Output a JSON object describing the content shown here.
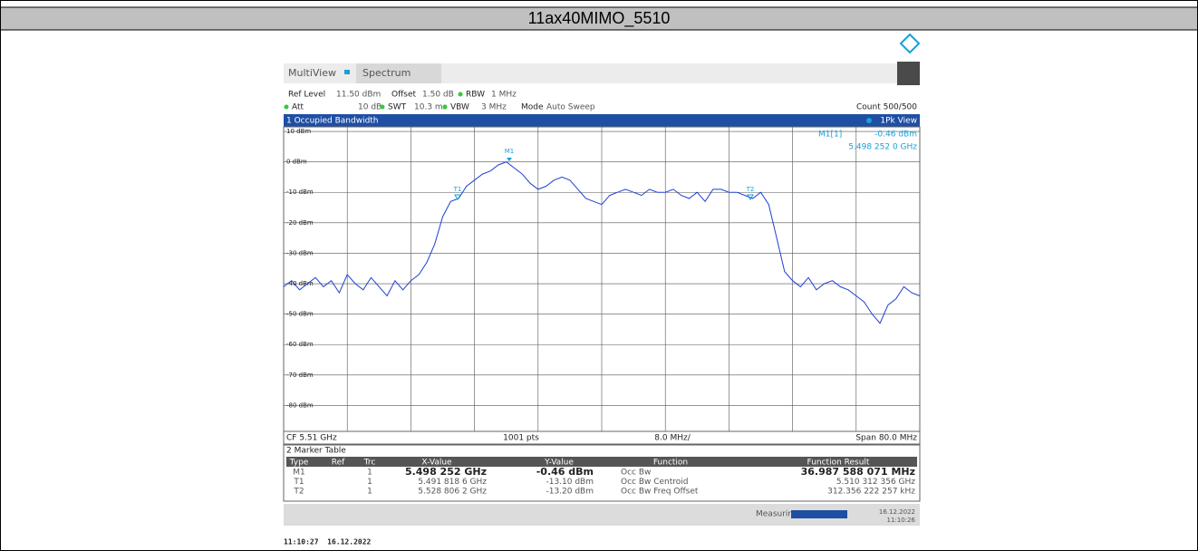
{
  "title": "11ax40MIMO_5510",
  "tabs": [
    "MultiView",
    "Spectrum"
  ],
  "settings": {
    "ref_level_label": "Ref Level",
    "ref_level": "11.50 dBm",
    "offset_label": "Offset",
    "offset": "1.50 dB",
    "rbw_label": "RBW",
    "rbw": "1 MHz",
    "att_label": "Att",
    "att": "10 dB",
    "swt_label": "SWT",
    "swt": "10.3 ms",
    "vbw_label": "VBW",
    "vbw": "3 MHz",
    "mode_label": "Mode",
    "mode": "Auto Sweep",
    "count": "Count 500/500"
  },
  "window": {
    "title": "1 Occupied Bandwidth",
    "view": "1Pk View"
  },
  "readout": {
    "marker": "M1[1]",
    "level": "-0.46 dBm",
    "freq": "5.498 252 0 GHz"
  },
  "plot": {
    "ylim": [
      -88.5,
      11.5
    ],
    "yticks": [
      {
        "value": 10,
        "label": "10 dBm"
      },
      {
        "value": 0,
        "label": "0 dBm"
      },
      {
        "value": -10,
        "label": "-10 dBm"
      },
      {
        "value": -20,
        "label": "-20 dBm"
      },
      {
        "value": -30,
        "label": "-30 dBm"
      },
      {
        "value": -40,
        "label": "-40 dBm"
      },
      {
        "value": -50,
        "label": "-50 dBm"
      },
      {
        "value": -60,
        "label": "-60 dBm"
      },
      {
        "value": -70,
        "label": "-70 dBm"
      },
      {
        "value": -80,
        "label": "-80 dBm"
      }
    ],
    "trace": [
      -41,
      -39,
      -42,
      -40,
      -38,
      -41,
      -39,
      -43,
      -37,
      -40,
      -42,
      -38,
      -41,
      -44,
      -39,
      -42,
      -39,
      -37,
      -33,
      -27,
      -18,
      -13,
      -12,
      -8,
      -6,
      -4,
      -3,
      -1,
      0,
      -2,
      -4,
      -7,
      -9,
      -8,
      -6,
      -5,
      -6,
      -9,
      -12,
      -13,
      -14,
      -11,
      -10,
      -9,
      -10,
      -11,
      -9,
      -10,
      -10,
      -9,
      -11,
      -12,
      -10,
      -13,
      -9,
      -9,
      -10,
      -10,
      -11,
      -12,
      -10,
      -14,
      -25,
      -36,
      -39,
      -41,
      -38,
      -42,
      -40,
      -39,
      -41,
      -42,
      -44,
      -46,
      -50,
      -53,
      -47,
      -45,
      -41,
      -43,
      -44
    ],
    "markers": [
      "M1",
      "T1",
      "T2"
    ]
  },
  "footer": {
    "cf": "CF 5.51 GHz",
    "pts": "1001 pts",
    "div": "8.0 MHz/",
    "span": "Span 80.0 MHz"
  },
  "marker_table": {
    "title": "2 Marker Table",
    "headers": [
      "Type",
      "Ref",
      "Trc",
      "X-Value",
      "Y-Value",
      "Function",
      "Function Result"
    ],
    "rows": [
      [
        "M1",
        "",
        "1",
        "5.498 252 GHz",
        "-0.46 dBm",
        "Occ Bw",
        "36.987 588 071 MHz"
      ],
      [
        "T1",
        "",
        "1",
        "5.491 818 6 GHz",
        "-13.10 dBm",
        "Occ Bw Centroid",
        "5.510 312 356 GHz"
      ],
      [
        "T2",
        "",
        "1",
        "5.528 806 2 GHz",
        "-13.20 dBm",
        "Occ Bw Freq Offset",
        "312.356 222 257 kHz"
      ]
    ]
  },
  "status": {
    "state": "Measuring...",
    "date": "16.12.2022",
    "time": "11:10:26"
  },
  "timestamp": "11:10:27  16.12.2022"
}
